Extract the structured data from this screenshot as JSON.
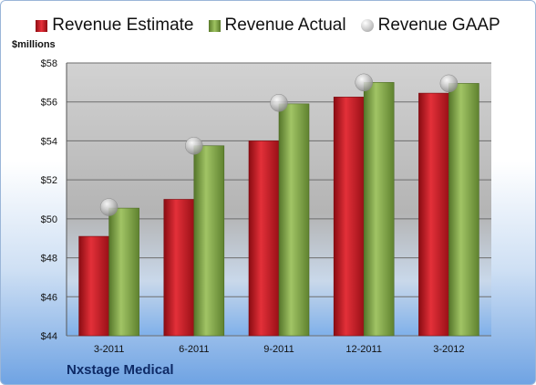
{
  "legend": [
    {
      "label": "Revenue Estimate",
      "color": "#d01b24",
      "shape": "box"
    },
    {
      "label": "Revenue Actual",
      "color": "#86ad4b",
      "shape": "box"
    },
    {
      "label": "Revenue GAAP",
      "color": "#b8b8b8",
      "shape": "circle"
    }
  ],
  "unit_label": "$millions",
  "company": "Nxstage Medical",
  "chart_data": {
    "type": "bar",
    "categories": [
      "3-2011",
      "6-2011",
      "9-2011",
      "12-2011",
      "3-2012"
    ],
    "series": [
      {
        "name": "Revenue Estimate",
        "type": "bar",
        "color": "#d01b24",
        "values": [
          49.1,
          51.0,
          54.0,
          56.25,
          56.45
        ]
      },
      {
        "name": "Revenue Actual",
        "type": "bar",
        "color": "#86ad4b",
        "values": [
          50.55,
          53.75,
          55.9,
          57.0,
          56.95
        ]
      },
      {
        "name": "Revenue GAAP",
        "type": "marker",
        "color": "#b8b8b8",
        "values": [
          50.6,
          53.75,
          55.95,
          57.0,
          56.95
        ]
      }
    ],
    "ylim": [
      44,
      58
    ],
    "yticks": [
      44,
      46,
      48,
      50,
      52,
      54,
      56,
      58
    ],
    "ytick_labels": [
      "$44",
      "$46",
      "$48",
      "$50",
      "$52",
      "$54",
      "$56",
      "$58"
    ],
    "ylabel": "$millions",
    "xlabel": "",
    "grid": true,
    "legend_position": "top"
  }
}
